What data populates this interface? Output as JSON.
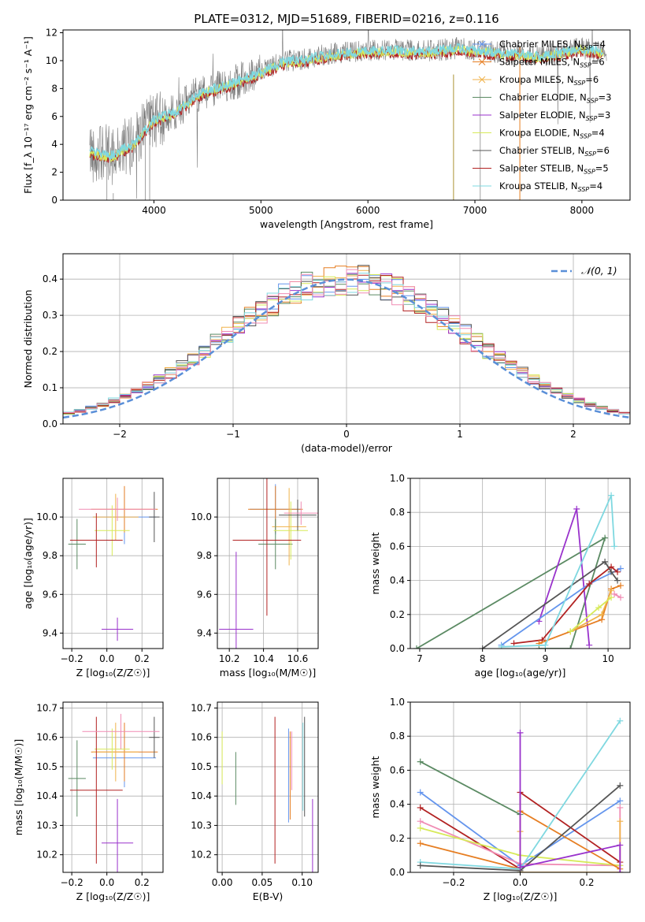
{
  "figure_title": "PLATE=0312, MJD=51689, FIBERID=0216, z=0.116",
  "colors": {
    "chabrier_miles": "#6495ed",
    "salpeter_miles": "#e67e22",
    "kroupa_miles": "#f0b24a",
    "chabrier_elodie": "#5b8a63",
    "salpeter_elodie": "#9932cc",
    "kroupa_elodie": "#d7ea59",
    "chabrier_stelib": "#555555",
    "salpeter_stelib": "#b22222",
    "kroupa_stelib": "#7fd8e0",
    "pink": "#f08cb4",
    "normal": "#5a8fd8",
    "grid": "#b0b0b0"
  },
  "chart_data": [
    {
      "id": "spectrum",
      "type": "line",
      "title": "PLATE=0312, MJD=51689, FIBERID=0216, z=0.116",
      "xlabel": "wavelength [Angstrom, rest frame]",
      "ylabel": "Flux [f_λ 10⁻¹⁷ erg cm⁻² s⁻¹ A⁻¹]",
      "xlim": [
        3150,
        8450
      ],
      "ylim": [
        0,
        12.2
      ],
      "xticks": [
        "4000",
        "5000",
        "6000",
        "7000",
        "8000"
      ],
      "yticks": [
        "0",
        "2",
        "4",
        "6",
        "8",
        "10",
        "12"
      ],
      "legend_position": "top-right",
      "legend": [
        "Chabrier MILES, N_SSP=4",
        "Salpeter MILES, N_SSP=6",
        "Kroupa MILES, N_SSP=6",
        "Chabrier ELODIE, N_SSP=3",
        "Salpeter ELODIE, N_SSP=3",
        "Kroupa ELODIE, N_SSP=4",
        "Chabrier STELIB, N_SSP=6",
        "Salpeter STELIB, N_SSP=5",
        "Kroupa STELIB, N_SSP=4"
      ],
      "continuum": {
        "x": [
          3400,
          3600,
          3800,
          4000,
          4200,
          4400,
          4600,
          4800,
          5000,
          5200,
          5400,
          5600,
          5800,
          6000,
          6200,
          6400,
          6600,
          6800,
          7000,
          7200,
          7400,
          7600,
          7800,
          8000,
          8200
        ],
        "y": [
          3.5,
          3.2,
          4.0,
          5.8,
          6.3,
          7.6,
          8.1,
          8.6,
          9.2,
          9.9,
          10.1,
          10.4,
          10.6,
          10.7,
          10.8,
          10.7,
          10.7,
          10.9,
          10.8,
          10.6,
          10.5,
          10.3,
          10.6,
          10.9,
          10.6
        ]
      }
    },
    {
      "id": "residuals",
      "type": "histogram",
      "xlabel": "(data-model)/error",
      "ylabel": "Normed distribution",
      "xlim": [
        -2.5,
        2.5
      ],
      "ylim": [
        0,
        0.47
      ],
      "xticks": [
        "−2",
        "−1",
        "0",
        "1",
        "2"
      ],
      "yticks": [
        "0.0",
        "0.1",
        "0.2",
        "0.3",
        "0.4"
      ],
      "legend": "𝒩(0, 1)",
      "legend_position": "top-right",
      "bin_width": 0.1
    },
    {
      "id": "age_vs_z",
      "type": "errorbar",
      "xlabel": "Z [log₁₀(Z/Z☉)]",
      "ylabel": "age  [log₁₀(age/yr)]",
      "xlim": [
        -0.25,
        0.32
      ],
      "ylim": [
        9.32,
        10.2
      ],
      "xticks": [
        "−0.2",
        "0.0",
        "0.2"
      ],
      "yticks": [
        "9.4",
        "9.6",
        "9.8",
        "10.0"
      ],
      "points": [
        {
          "c": "chabrier_miles",
          "x": 0.1,
          "xerr": 0.18,
          "y": 10.0,
          "yerr": 0.14
        },
        {
          "c": "salpeter_miles",
          "x": 0.1,
          "xerr": 0.19,
          "y": 10.04,
          "yerr": 0.12
        },
        {
          "c": "kroupa_miles",
          "x": 0.05,
          "xerr": 0.13,
          "y": 10.0,
          "yerr": 0.12
        },
        {
          "c": "chabrier_elodie",
          "x": -0.17,
          "xerr": 0.05,
          "y": 9.86,
          "yerr": 0.13
        },
        {
          "c": "salpeter_elodie",
          "x": 0.06,
          "xerr": 0.09,
          "y": 9.42,
          "yerr": 0.06
        },
        {
          "c": "kroupa_elodie",
          "x": 0.03,
          "xerr": 0.1,
          "y": 9.93,
          "yerr": 0.13
        },
        {
          "c": "chabrier_stelib",
          "x": 0.27,
          "xerr": 0.03,
          "y": 10.0,
          "yerr": 0.13
        },
        {
          "c": "salpeter_stelib",
          "x": -0.06,
          "xerr": 0.15,
          "y": 9.88,
          "yerr": 0.14
        },
        {
          "c": "pink",
          "x": 0.06,
          "xerr": 0.22,
          "y": 10.04,
          "yerr": 0.06
        }
      ]
    },
    {
      "id": "age_vs_mass",
      "type": "errorbar",
      "xlabel": "mass [log₁₀(M/M☉)]",
      "ylabel": "",
      "xlim": [
        10.13,
        10.72
      ],
      "ylim": [
        9.32,
        10.2
      ],
      "xticks": [
        "10.2",
        "10.4",
        "10.6"
      ],
      "yticks": [
        "9.4",
        "9.6",
        "9.8",
        "10.0"
      ],
      "points": [
        {
          "c": "chabrier_miles",
          "x": 10.47,
          "xerr": 0.15,
          "y": 10.04,
          "yerr": 0.13
        },
        {
          "c": "salpeter_miles",
          "x": 10.47,
          "xerr": 0.16,
          "y": 10.04,
          "yerr": 0.12
        },
        {
          "c": "kroupa_miles",
          "x": 10.55,
          "xerr": 0.1,
          "y": 9.95,
          "yerr": 0.2
        },
        {
          "c": "chabrier_elodie",
          "x": 10.47,
          "xerr": 0.1,
          "y": 9.86,
          "yerr": 0.13
        },
        {
          "c": "salpeter_elodie",
          "x": 10.24,
          "xerr": 0.1,
          "y": 9.42,
          "yerr": 0.4
        },
        {
          "c": "kroupa_elodie",
          "x": 10.56,
          "xerr": 0.1,
          "y": 9.93,
          "yerr": 0.15
        },
        {
          "c": "chabrier_stelib",
          "x": 10.6,
          "xerr": 0.11,
          "y": 10.01,
          "yerr": 0.08
        },
        {
          "c": "salpeter_stelib",
          "x": 10.42,
          "xerr": 0.2,
          "y": 9.88,
          "yerr": 0.39
        },
        {
          "c": "pink",
          "x": 10.62,
          "xerr": 0.1,
          "y": 10.02,
          "yerr": 0.06
        }
      ]
    },
    {
      "id": "weight_vs_age",
      "type": "line",
      "xlabel": "age  [log₁₀(age/yr)]",
      "ylabel": "mass weight",
      "xlim": [
        6.85,
        10.35
      ],
      "ylim": [
        0,
        1.0
      ],
      "xticks": [
        "7",
        "8",
        "9",
        "10"
      ],
      "yticks": [
        "0.0",
        "0.2",
        "0.4",
        "0.6",
        "0.8",
        "1.0"
      ],
      "series": [
        {
          "c": "chabrier_elodie",
          "x": [
            6.95,
            9.95,
            9.4,
            8.9
          ],
          "y": [
            0.0,
            0.65,
            0.0,
            0.0
          ]
        },
        {
          "c": "salpeter_elodie",
          "x": [
            8.9,
            9.5,
            9.7
          ],
          "y": [
            0.16,
            0.82,
            0.02
          ]
        },
        {
          "c": "chabrier_miles",
          "x": [
            8.3,
            9.7,
            10.2
          ],
          "y": [
            0.02,
            0.38,
            0.47
          ]
        },
        {
          "c": "salpeter_stelib",
          "x": [
            8.5,
            8.95,
            9.7,
            10.05,
            10.15
          ],
          "y": [
            0.03,
            0.05,
            0.38,
            0.48,
            0.45
          ]
        },
        {
          "c": "chabrier_stelib",
          "x": [
            8.0,
            9.95,
            10.05,
            10.15
          ],
          "y": [
            0.0,
            0.51,
            0.45,
            0.4
          ]
        },
        {
          "c": "salpeter_miles",
          "x": [
            8.9,
            9.9,
            10.05,
            10.2
          ],
          "y": [
            0.03,
            0.17,
            0.35,
            0.37
          ]
        },
        {
          "c": "kroupa_miles",
          "x": [
            9.4,
            9.9,
            10.05
          ],
          "y": [
            0.1,
            0.2,
            0.34
          ]
        },
        {
          "c": "kroupa_elodie",
          "x": [
            9.4,
            9.85,
            10.05
          ],
          "y": [
            0.1,
            0.24,
            0.3
          ]
        },
        {
          "c": "kroupa_stelib",
          "x": [
            8.3,
            9.0,
            10.05,
            10.1
          ],
          "y": [
            0.01,
            0.02,
            0.9,
            0.6
          ]
        },
        {
          "c": "pink",
          "x": [
            10.1,
            10.2
          ],
          "y": [
            0.32,
            0.3
          ]
        }
      ]
    },
    {
      "id": "mass_vs_z",
      "type": "errorbar",
      "xlabel": "Z [log₁₀(Z/Z☉)]",
      "ylabel": "mass [log₁₀(M/M☉)]",
      "xlim": [
        -0.25,
        0.32
      ],
      "ylim": [
        10.14,
        10.72
      ],
      "xticks": [
        "−0.2",
        "0.0",
        "0.2"
      ],
      "yticks": [
        "10.2",
        "10.3",
        "10.4",
        "10.5",
        "10.6",
        "10.7"
      ],
      "points": [
        {
          "c": "chabrier_miles",
          "x": 0.1,
          "xerr": 0.18,
          "y": 10.53,
          "yerr": 0.1
        },
        {
          "c": "salpeter_miles",
          "x": 0.1,
          "xerr": 0.19,
          "y": 10.55,
          "yerr": 0.1
        },
        {
          "c": "kroupa_miles",
          "x": 0.05,
          "xerr": 0.13,
          "y": 10.55,
          "yerr": 0.1
        },
        {
          "c": "chabrier_elodie",
          "x": -0.17,
          "xerr": 0.05,
          "y": 10.46,
          "yerr": 0.13
        },
        {
          "c": "salpeter_elodie",
          "x": 0.06,
          "xerr": 0.09,
          "y": 10.24,
          "yerr": 0.15
        },
        {
          "c": "kroupa_elodie",
          "x": 0.03,
          "xerr": 0.1,
          "y": 10.56,
          "yerr": 0.07
        },
        {
          "c": "chabrier_stelib",
          "x": 0.27,
          "xerr": 0.03,
          "y": 10.6,
          "yerr": 0.07
        },
        {
          "c": "salpeter_stelib",
          "x": -0.06,
          "xerr": 0.15,
          "y": 10.42,
          "yerr": 0.25
        },
        {
          "c": "pink",
          "x": 0.08,
          "xerr": 0.22,
          "y": 10.62,
          "yerr": 0.06
        }
      ]
    },
    {
      "id": "mass_vs_ebv",
      "type": "errorbar",
      "xlabel": "E(B-V)",
      "ylabel": "",
      "xlim": [
        -0.006,
        0.12
      ],
      "ylim": [
        10.14,
        10.72
      ],
      "xticks": [
        "0.00",
        "0.05",
        "0.10"
      ],
      "yticks": [
        "10.2",
        "10.3",
        "10.4",
        "10.5",
        "10.6",
        "10.7"
      ],
      "points": [
        {
          "c": "kroupa_elodie",
          "x": 0.0,
          "y": 10.53,
          "yerr": 0.09
        },
        {
          "c": "chabrier_elodie",
          "x": 0.017,
          "y": 10.46,
          "yerr": 0.09
        },
        {
          "c": "salpeter_stelib",
          "x": 0.066,
          "y": 10.42,
          "yerr": 0.25
        },
        {
          "c": "chabrier_miles",
          "x": 0.083,
          "y": 10.47,
          "yerr": 0.16
        },
        {
          "c": "salpeter_miles",
          "x": 0.085,
          "y": 10.47,
          "yerr": 0.15
        },
        {
          "c": "pink",
          "x": 0.087,
          "y": 10.52,
          "yerr": 0.1
        },
        {
          "c": "kroupa_stelib",
          "x": 0.101,
          "y": 10.5,
          "yerr": 0.15
        },
        {
          "c": "chabrier_stelib",
          "x": 0.103,
          "y": 10.5,
          "yerr": 0.17
        },
        {
          "c": "salpeter_elodie",
          "x": 0.113,
          "y": 10.24,
          "yerr": 0.15
        }
      ]
    },
    {
      "id": "weight_vs_z",
      "type": "line",
      "xlabel": "Z [log₁₀(Z/Z☉)]",
      "ylabel": "mass weight",
      "xlim": [
        -0.33,
        0.33
      ],
      "ylim": [
        0,
        1.0
      ],
      "xticks": [
        "−0.2",
        "0.0",
        "0.2"
      ],
      "yticks": [
        "0.0",
        "0.2",
        "0.4",
        "0.6",
        "0.8",
        "1.0"
      ],
      "series": [
        {
          "c": "chabrier_elodie",
          "x": [
            -0.3,
            0.0,
            0.0
          ],
          "y": [
            0.65,
            0.34,
            0.0
          ]
        },
        {
          "c": "chabrier_miles",
          "x": [
            -0.3,
            0.0,
            0.3
          ],
          "y": [
            0.47,
            0.04,
            0.42
          ]
        },
        {
          "c": "salpeter_stelib",
          "x": [
            -0.3,
            0.0,
            0.0,
            0.3
          ],
          "y": [
            0.38,
            0.02,
            0.47,
            0.06
          ]
        },
        {
          "c": "pink",
          "x": [
            -0.3,
            0.0,
            0.3,
            0.3
          ],
          "y": [
            0.3,
            0.05,
            0.04,
            0.38
          ]
        },
        {
          "c": "kroupa_elodie",
          "x": [
            -0.3,
            0.0,
            0.3
          ],
          "y": [
            0.26,
            0.1,
            0.04
          ]
        },
        {
          "c": "salpeter_miles",
          "x": [
            -0.3,
            0.0,
            0.0,
            0.3
          ],
          "y": [
            0.17,
            0.02,
            0.36,
            0.02
          ]
        },
        {
          "c": "kroupa_miles",
          "x": [
            0.0,
            0.0,
            0.3,
            0.3
          ],
          "y": [
            0.24,
            0.0,
            0.0,
            0.3
          ]
        },
        {
          "c": "kroupa_stelib",
          "x": [
            -0.3,
            0.0,
            0.3
          ],
          "y": [
            0.06,
            0.02,
            0.89
          ]
        },
        {
          "c": "chabrier_stelib",
          "x": [
            -0.3,
            0.0,
            0.3
          ],
          "y": [
            0.04,
            0.01,
            0.51
          ]
        },
        {
          "c": "salpeter_elodie",
          "x": [
            0.0,
            0.0,
            0.3,
            0.3
          ],
          "y": [
            0.82,
            0.03,
            0.16,
            0.0
          ]
        }
      ]
    }
  ]
}
